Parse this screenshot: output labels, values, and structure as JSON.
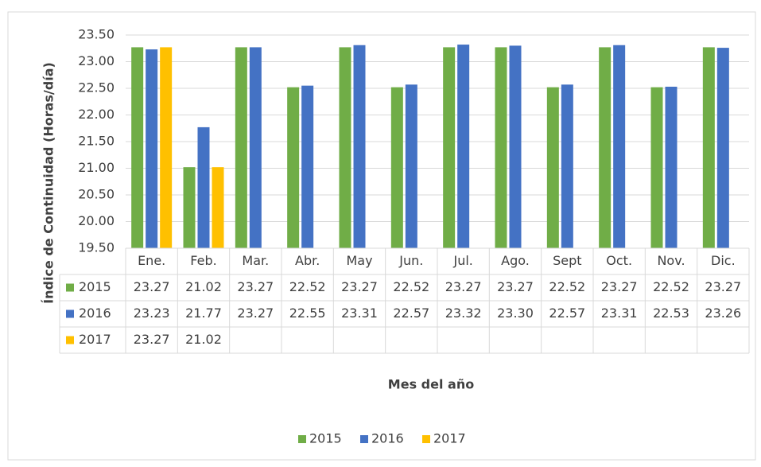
{
  "chart_data": {
    "type": "bar",
    "y_label": "Índice de Continuidad (Horas/día)",
    "x_label": "Mes del año",
    "categories": [
      "Ene.",
      "Feb.",
      "Mar.",
      "Abr.",
      "May",
      "Jun.",
      "Jul.",
      "Ago.",
      "Sept",
      "Oct.",
      "Nov.",
      "Dic."
    ],
    "series": [
      {
        "name": "2015",
        "color": "#70ad47",
        "values": [
          23.27,
          21.02,
          23.27,
          22.52,
          23.27,
          22.52,
          23.27,
          23.27,
          22.52,
          23.27,
          22.52,
          23.27
        ],
        "value_labels": [
          "23.27",
          "21.02",
          "23.27",
          "22.52",
          "23.27",
          "22.52",
          "23.27",
          "23.27",
          "22.52",
          "23.27",
          "22.52",
          "23.27"
        ]
      },
      {
        "name": "2016",
        "color": "#4472c4",
        "values": [
          23.23,
          21.77,
          23.27,
          22.55,
          23.31,
          22.57,
          23.32,
          23.3,
          22.57,
          23.31,
          22.53,
          23.26
        ],
        "value_labels": [
          "23.23",
          "21.77",
          "23.27",
          "22.55",
          "23.31",
          "22.57",
          "23.32",
          "23.30",
          "22.57",
          "23.31",
          "22.53",
          "23.26"
        ]
      },
      {
        "name": "2017",
        "color": "#ffc000",
        "values": [
          23.27,
          21.02,
          null,
          null,
          null,
          null,
          null,
          null,
          null,
          null,
          null,
          null
        ],
        "value_labels": [
          "23.27",
          "21.02",
          null,
          null,
          null,
          null,
          null,
          null,
          null,
          null,
          null,
          null
        ]
      }
    ],
    "ylim": [
      19.5,
      23.5
    ],
    "yticks": [
      {
        "value": 19.5,
        "label": "19.50"
      },
      {
        "value": 20,
        "label": "20.00"
      },
      {
        "value": 20.5,
        "label": "20.50"
      },
      {
        "value": 21,
        "label": "21.00"
      },
      {
        "value": 21.5,
        "label": "21.50"
      },
      {
        "value": 22,
        "label": "22.00"
      },
      {
        "value": 22.5,
        "label": "22.50"
      },
      {
        "value": 23,
        "label": "23.00"
      },
      {
        "value": 23.5,
        "label": "23.50"
      }
    ],
    "grid": true,
    "legend": "bottom"
  }
}
